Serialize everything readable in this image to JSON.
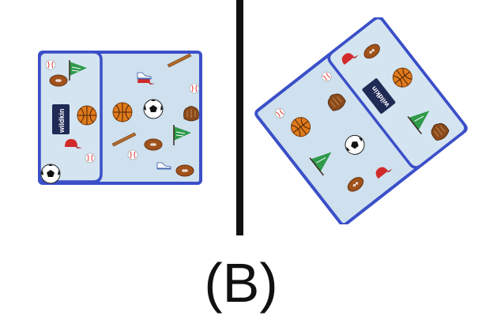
{
  "caption": "(B)",
  "brand_label": "wildkin",
  "colors": {
    "fabric": "#cfe0ee",
    "binding": "#3a4fc8",
    "label_patch": "#1f2a55",
    "divider": "#111111"
  },
  "photos": [
    {
      "view": "flat",
      "pattern_icons": [
        "football-icon",
        "basketball-icon",
        "soccer-ball-icon",
        "baseball-icon",
        "pennant-icon",
        "bat-icon",
        "glove-icon",
        "cap-icon",
        "sneaker-icon"
      ]
    },
    {
      "view": "rotated",
      "pattern_icons": [
        "football-icon",
        "basketball-icon",
        "soccer-ball-icon",
        "baseball-icon",
        "pennant-icon",
        "bat-icon",
        "glove-icon",
        "cap-icon",
        "sneaker-icon"
      ]
    }
  ]
}
